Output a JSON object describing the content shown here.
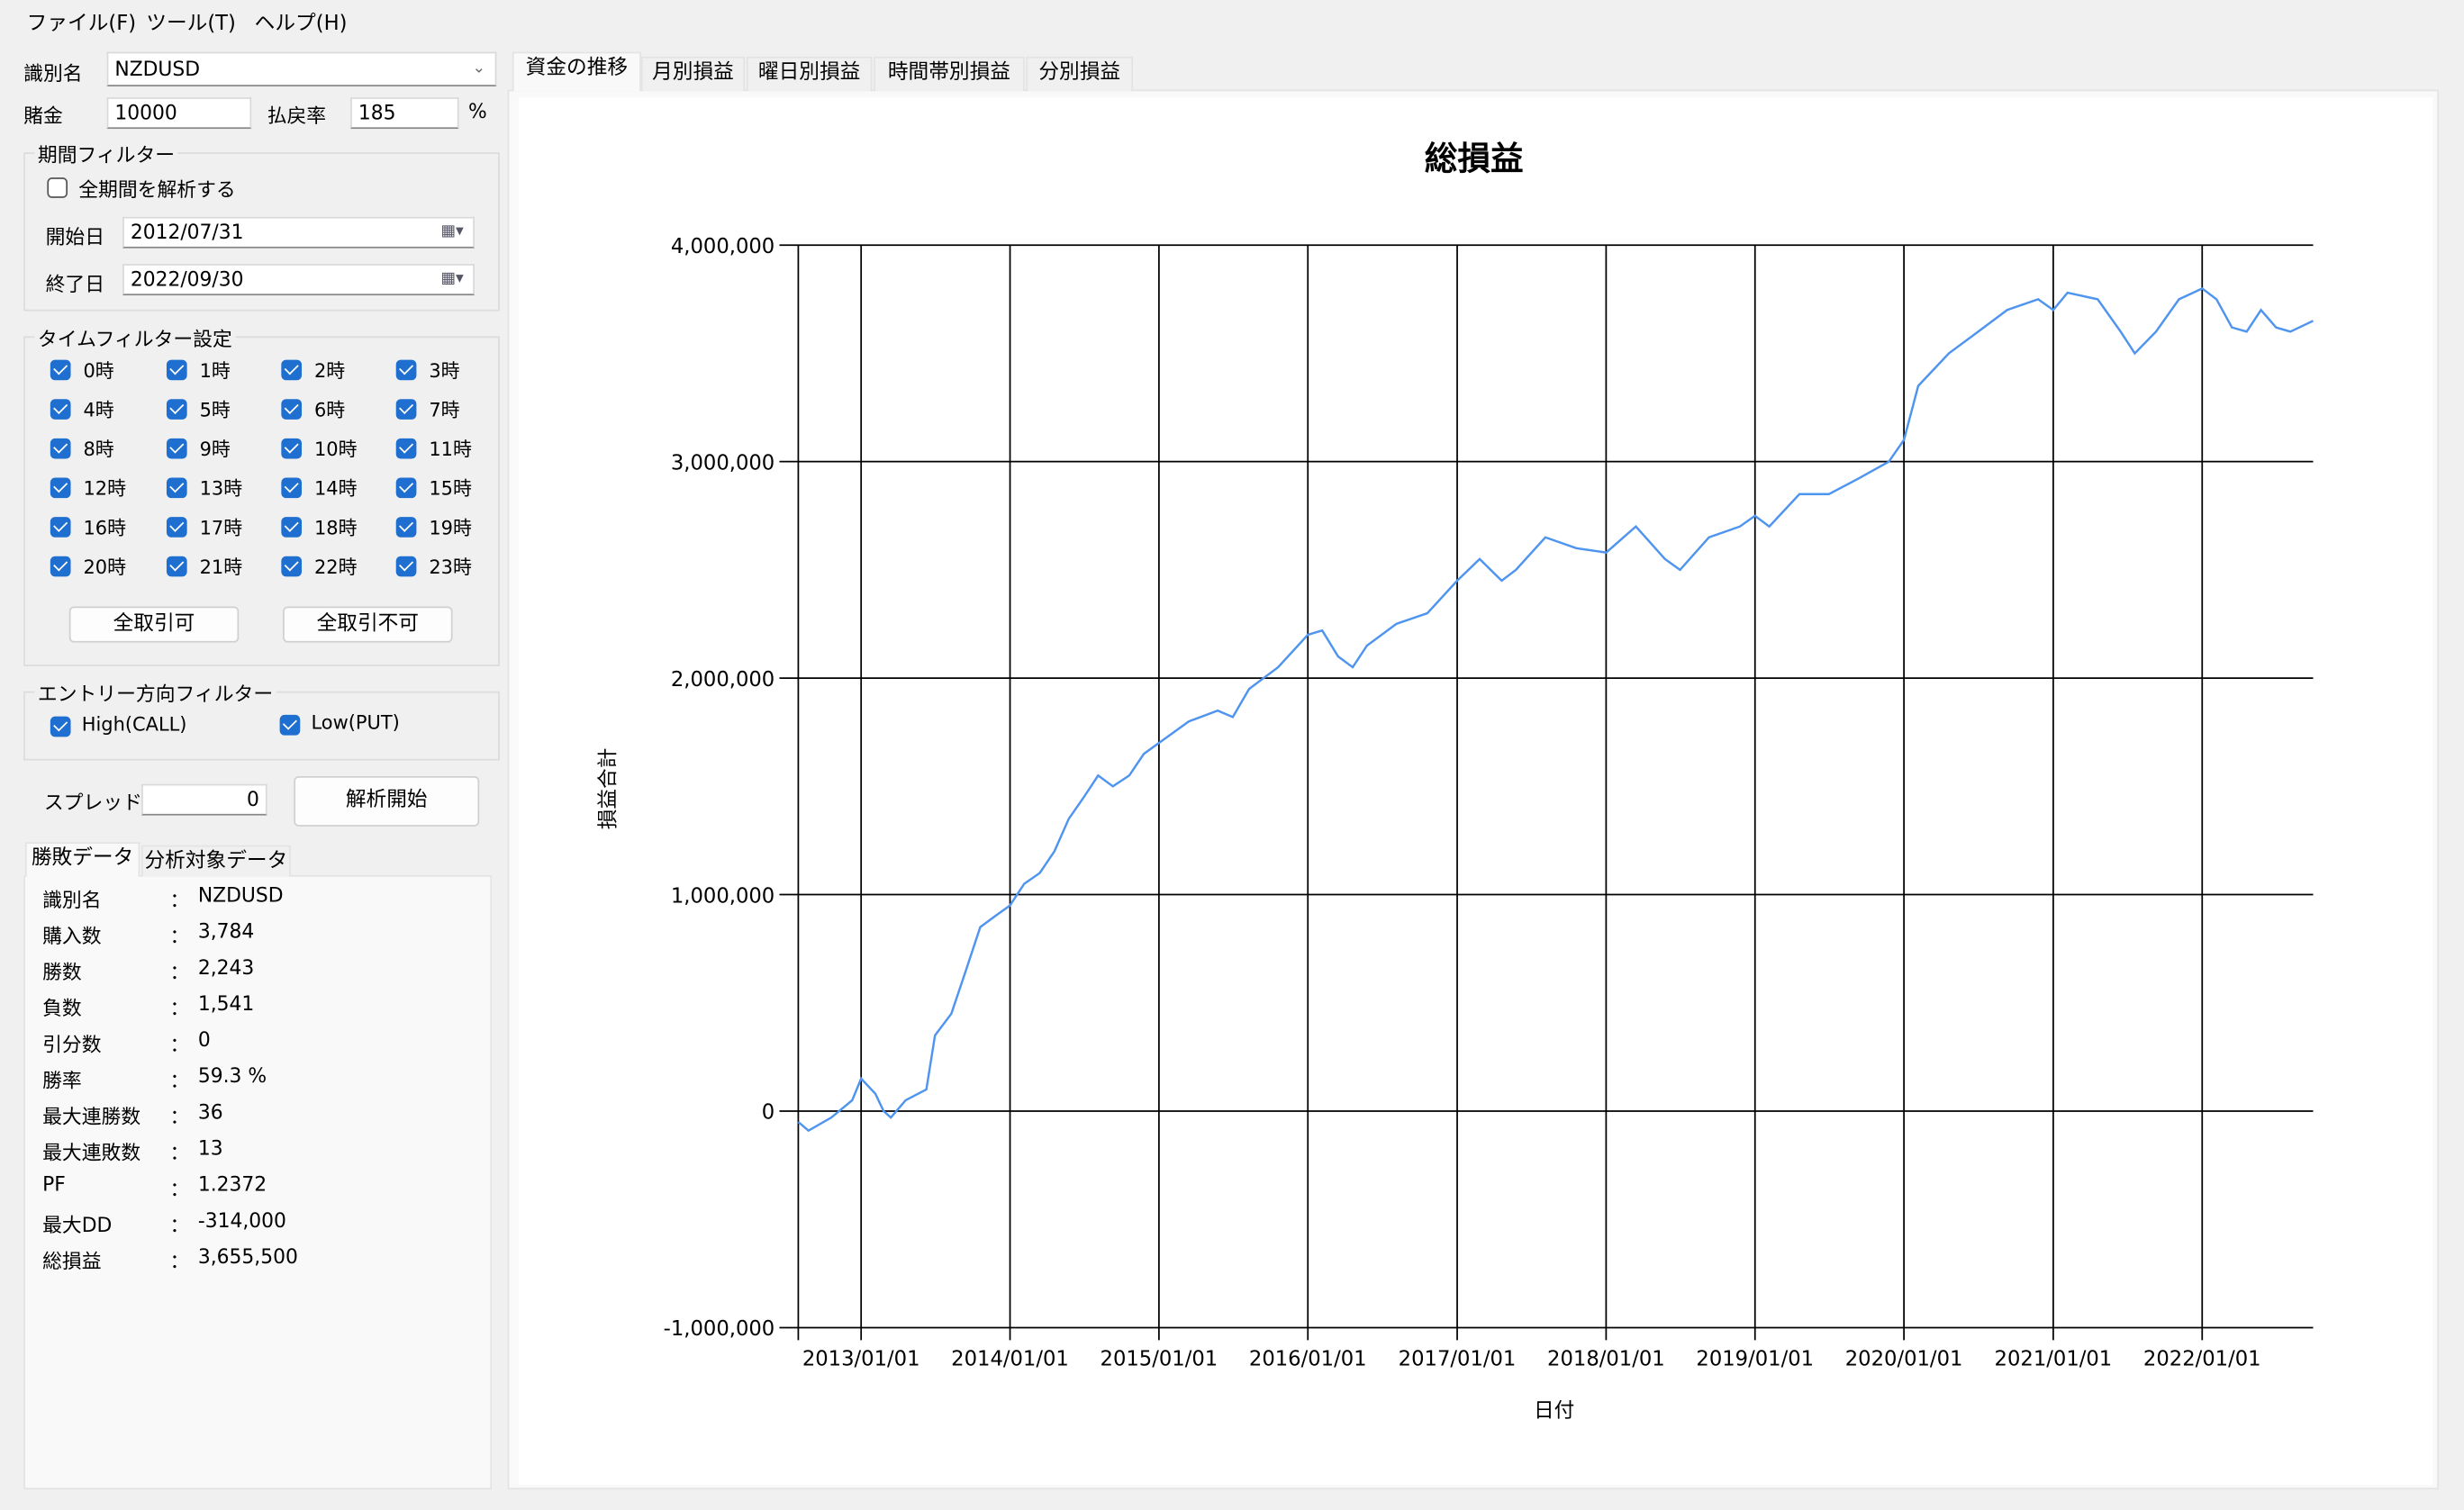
{
  "menu": [
    "ファイル(F)",
    "ツール(T)",
    "ヘルプ(H)"
  ],
  "symbol": {
    "label": "識別名",
    "value": "NZDUSD"
  },
  "bet": {
    "label": "賭金",
    "value": "10000"
  },
  "payout": {
    "label": "払戻率",
    "value": "185",
    "unit": "%"
  },
  "period": {
    "title": "期間フィルター",
    "all_label": "全期間を解析する",
    "all_checked": false,
    "start_label": "開始日",
    "start": "2012/07/31",
    "end_label": "終了日",
    "end": "2022/09/30"
  },
  "time_filter": {
    "title": "タイムフィルター設定",
    "hours": [
      "0時",
      "1時",
      "2時",
      "3時",
      "4時",
      "5時",
      "6時",
      "7時",
      "8時",
      "9時",
      "10時",
      "11時",
      "12時",
      "13時",
      "14時",
      "15時",
      "16時",
      "17時",
      "18時",
      "19時",
      "20時",
      "21時",
      "22時",
      "23時"
    ],
    "all_on": "全取引可",
    "all_off": "全取引不可"
  },
  "entry": {
    "title": "エントリー方向フィルター",
    "high": "High(CALL)",
    "low": "Low(PUT)"
  },
  "spread": {
    "label": "スプレッド",
    "value": "0",
    "run": "解析開始"
  },
  "stats_tabs": [
    "勝敗データ",
    "分析対象データ"
  ],
  "stats": [
    {
      "k": "識別名",
      "v": "NZDUSD"
    },
    {
      "k": "購入数",
      "v": "3,784"
    },
    {
      "k": "勝数",
      "v": "2,243"
    },
    {
      "k": "負数",
      "v": "1,541"
    },
    {
      "k": "引分数",
      "v": "0"
    },
    {
      "k": "勝率",
      "v": "59.3 %"
    },
    {
      "k": "最大連勝数",
      "v": "36"
    },
    {
      "k": "最大連敗数",
      "v": "13"
    },
    {
      "k": "PF",
      "v": "1.2372"
    },
    {
      "k": "最大DD",
      "v": "-314,000"
    },
    {
      "k": "総損益",
      "v": "3,655,500"
    }
  ],
  "chart_tabs": [
    "資金の推移",
    "月別損益",
    "曜日別損益",
    "時間帯別損益",
    "分別損益"
  ],
  "colors": {
    "line": "#4f94ef",
    "check": "#1f6fd1"
  },
  "chart_data": {
    "type": "line",
    "title": "総損益",
    "xlabel": "日付",
    "ylabel": "損益合計",
    "xlim": [
      "2012-07-31",
      "2022-09-30"
    ],
    "ylim": [
      -1000000,
      4000000
    ],
    "grid": true,
    "yticks": [
      "-1,000,000",
      "0",
      "1,000,000",
      "2,000,000",
      "3,000,000",
      "4,000,000"
    ],
    "xticks": [
      "2013/01/01",
      "2014/01/01",
      "2015/01/01",
      "2016/01/01",
      "2017/01/01",
      "2018/01/01",
      "2019/01/01",
      "2020/01/01",
      "2021/01/01",
      "2022/01/01"
    ],
    "series": [
      {
        "x": [
          "2012-07-31",
          "2012-08-25",
          "2012-10-20",
          "2012-12-10",
          "2013-01-01",
          "2013-02-05",
          "2013-02-25",
          "2013-03-15",
          "2013-04-20",
          "2013-06-10",
          "2013-07-01",
          "2013-08-10",
          "2013-09-15",
          "2013-10-20",
          "2013-11-25",
          "2014-01-01",
          "2014-02-05",
          "2014-03-15",
          "2014-04-20",
          "2014-05-25",
          "2014-07-01",
          "2014-08-05",
          "2014-09-10",
          "2014-10-20",
          "2014-11-25",
          "2015-01-01",
          "2015-03-15",
          "2015-05-25",
          "2015-07-01",
          "2015-08-10",
          "2015-10-20",
          "2016-01-01",
          "2016-02-05",
          "2016-03-15",
          "2016-04-20",
          "2016-05-25",
          "2016-08-05",
          "2016-10-20",
          "2017-01-01",
          "2017-02-25",
          "2017-04-20",
          "2017-05-25",
          "2017-08-05",
          "2017-10-20",
          "2018-01-01",
          "2018-03-15",
          "2018-05-25",
          "2018-07-01",
          "2018-09-10",
          "2018-11-25",
          "2019-01-01",
          "2019-02-05",
          "2019-04-20",
          "2019-07-01",
          "2019-09-10",
          "2019-11-25",
          "2020-01-01",
          "2020-02-05",
          "2020-04-20",
          "2020-07-01",
          "2020-09-10",
          "2020-11-25",
          "2021-01-01",
          "2021-02-05",
          "2021-04-20",
          "2021-06-15",
          "2021-07-20",
          "2021-09-10",
          "2021-11-05",
          "2022-01-01",
          "2022-02-05",
          "2022-03-15",
          "2022-04-20",
          "2022-05-25",
          "2022-07-01",
          "2022-08-05",
          "2022-09-30"
        ],
        "y": [
          -50000,
          -90000,
          -30000,
          50000,
          150000,
          80000,
          0,
          -30000,
          50000,
          100000,
          350000,
          450000,
          650000,
          850000,
          900000,
          950000,
          1050000,
          1100000,
          1200000,
          1350000,
          1450000,
          1550000,
          1500000,
          1550000,
          1650000,
          1700000,
          1800000,
          1850000,
          1820000,
          1950000,
          2050000,
          2200000,
          2220000,
          2100000,
          2050000,
          2150000,
          2250000,
          2300000,
          2450000,
          2550000,
          2450000,
          2500000,
          2650000,
          2600000,
          2580000,
          2700000,
          2550000,
          2500000,
          2650000,
          2700000,
          2750000,
          2700000,
          2850000,
          2850000,
          2920000,
          3000000,
          3100000,
          3350000,
          3500000,
          3600000,
          3700000,
          3750000,
          3700000,
          3780000,
          3750000,
          3600000,
          3500000,
          3600000,
          3750000,
          3800000,
          3750000,
          3620000,
          3600000,
          3700000,
          3620000,
          3600000,
          3650000
        ]
      }
    ]
  }
}
